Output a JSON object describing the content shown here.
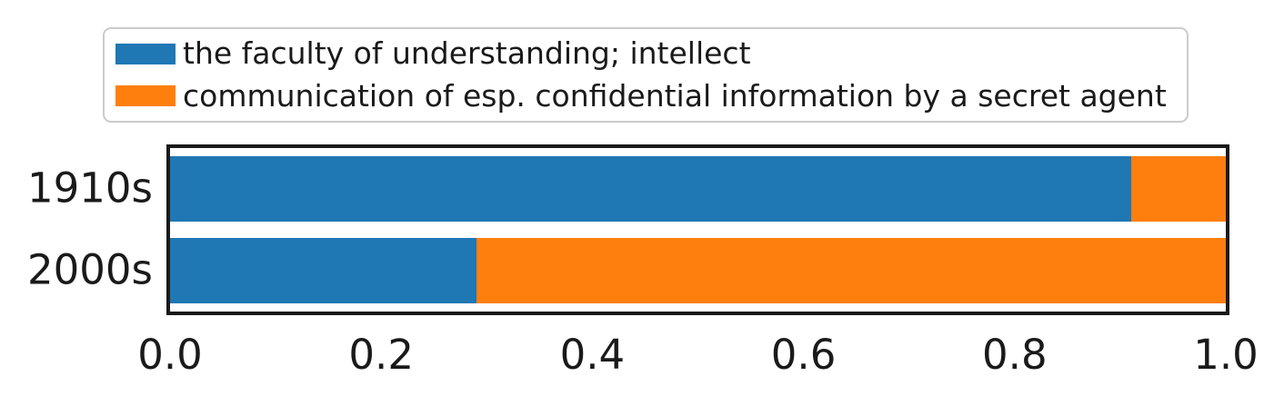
{
  "chart_data": {
    "type": "bar",
    "stacked": true,
    "orientation": "horizontal",
    "categories": [
      "1910s",
      "2000s"
    ],
    "series": [
      {
        "name": "the faculty of understanding; intellect",
        "color": "#1f77b4",
        "values": [
          0.91,
          0.29
        ]
      },
      {
        "name": "communication of esp. confidential information by a secret agent",
        "color": "#ff7f0e",
        "values": [
          0.09,
          0.71
        ]
      }
    ],
    "xlim": [
      0,
      1
    ],
    "x_tick_labels": [
      "0.0",
      "0.2",
      "0.4",
      "0.6",
      "0.8",
      "1.0"
    ],
    "x_tick_values": [
      0.0,
      0.2,
      0.4,
      0.6,
      0.8,
      1.0
    ],
    "legend_position": "upper-left-above-plot",
    "grid": false
  },
  "colors": {
    "spine": "#1a1a1a",
    "text": "#1a1a1a",
    "legend_border": "#cbcbcb",
    "background": "#ffffff"
  }
}
